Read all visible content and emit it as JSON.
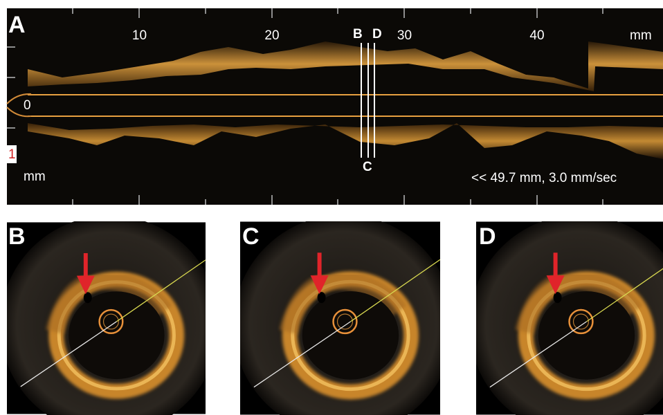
{
  "top_panel": {
    "label": "A",
    "scale_ticks": [
      10,
      20,
      30,
      40
    ],
    "scale_unit": "mm",
    "depth_labels": [
      "0",
      "1"
    ],
    "depth_unit": "mm",
    "markers": [
      "B",
      "C",
      "D"
    ],
    "pullback_info": "<< 49.7 mm, 3.0 mm/sec"
  },
  "cross_sections": [
    {
      "label": "B"
    },
    {
      "label": "C"
    },
    {
      "label": "D"
    }
  ]
}
